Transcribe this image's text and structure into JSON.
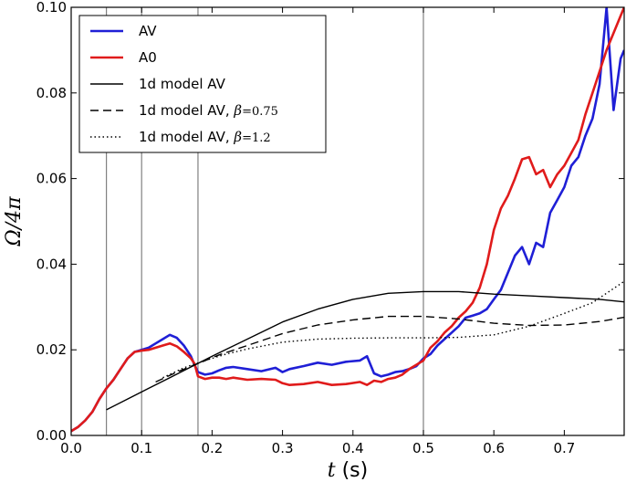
{
  "chart_data": {
    "type": "line",
    "xlabel": "t (s)",
    "xlabel_var": "t",
    "xlabel_unit": "(s)",
    "ylabel": "Ω/4π",
    "xlim": [
      0.0,
      0.785
    ],
    "ylim": [
      0.0,
      0.1
    ],
    "xticks": [
      0.0,
      0.1,
      0.2,
      0.3,
      0.4,
      0.5,
      0.6,
      0.7
    ],
    "xtick_labels": [
      "0.0",
      "0.1",
      "0.2",
      "0.3",
      "0.4",
      "0.5",
      "0.6",
      "0.7"
    ],
    "yticks": [
      0.0,
      0.02,
      0.04,
      0.06,
      0.08,
      0.1
    ],
    "ytick_labels": [
      "0.00",
      "0.02",
      "0.04",
      "0.06",
      "0.08",
      "0.10"
    ],
    "grid": false,
    "legend_position": "top-left",
    "vertical_lines": [
      0.05,
      0.1,
      0.18,
      0.5
    ],
    "series": [
      {
        "name": "AV",
        "color": "#1f1fd6",
        "style": "solid",
        "x": [
          0.0,
          0.01,
          0.02,
          0.03,
          0.04,
          0.05,
          0.06,
          0.07,
          0.08,
          0.09,
          0.1,
          0.11,
          0.12,
          0.13,
          0.14,
          0.15,
          0.16,
          0.17,
          0.175,
          0.18,
          0.19,
          0.2,
          0.21,
          0.22,
          0.23,
          0.25,
          0.27,
          0.29,
          0.3,
          0.31,
          0.33,
          0.35,
          0.37,
          0.39,
          0.41,
          0.42,
          0.43,
          0.44,
          0.45,
          0.46,
          0.47,
          0.48,
          0.49,
          0.5,
          0.51,
          0.52,
          0.53,
          0.54,
          0.55,
          0.56,
          0.57,
          0.58,
          0.59,
          0.6,
          0.61,
          0.62,
          0.63,
          0.64,
          0.65,
          0.66,
          0.67,
          0.68,
          0.69,
          0.7,
          0.71,
          0.72,
          0.73,
          0.74,
          0.75,
          0.76,
          0.77,
          0.78,
          0.785
        ],
        "y": [
          0.001,
          0.002,
          0.0035,
          0.0055,
          0.0085,
          0.011,
          0.013,
          0.0155,
          0.018,
          0.0195,
          0.02,
          0.0205,
          0.0215,
          0.0225,
          0.0235,
          0.0228,
          0.021,
          0.0185,
          0.0165,
          0.0148,
          0.0142,
          0.0145,
          0.0152,
          0.0158,
          0.016,
          0.0155,
          0.015,
          0.0158,
          0.0148,
          0.0155,
          0.0162,
          0.017,
          0.0165,
          0.0172,
          0.0175,
          0.0185,
          0.0145,
          0.0138,
          0.0142,
          0.0148,
          0.015,
          0.0155,
          0.0162,
          0.018,
          0.019,
          0.021,
          0.0225,
          0.024,
          0.0255,
          0.0275,
          0.028,
          0.0285,
          0.0295,
          0.0318,
          0.034,
          0.038,
          0.042,
          0.044,
          0.04,
          0.045,
          0.044,
          0.052,
          0.055,
          0.058,
          0.063,
          0.065,
          0.07,
          0.074,
          0.082,
          0.1,
          0.076,
          0.088,
          0.09
        ]
      },
      {
        "name": "A0",
        "color": "#e01b1b",
        "style": "solid",
        "x": [
          0.0,
          0.01,
          0.02,
          0.03,
          0.04,
          0.05,
          0.06,
          0.07,
          0.08,
          0.09,
          0.1,
          0.11,
          0.12,
          0.13,
          0.14,
          0.15,
          0.16,
          0.17,
          0.175,
          0.18,
          0.19,
          0.2,
          0.21,
          0.22,
          0.23,
          0.25,
          0.27,
          0.29,
          0.3,
          0.31,
          0.33,
          0.35,
          0.37,
          0.39,
          0.41,
          0.42,
          0.43,
          0.44,
          0.45,
          0.46,
          0.47,
          0.48,
          0.49,
          0.5,
          0.51,
          0.52,
          0.53,
          0.54,
          0.55,
          0.56,
          0.57,
          0.58,
          0.59,
          0.6,
          0.61,
          0.62,
          0.63,
          0.64,
          0.65,
          0.66,
          0.67,
          0.68,
          0.69,
          0.7,
          0.71,
          0.72,
          0.73,
          0.74,
          0.75,
          0.76,
          0.77,
          0.78,
          0.785
        ],
        "y": [
          0.001,
          0.002,
          0.0035,
          0.0055,
          0.0085,
          0.011,
          0.013,
          0.0155,
          0.018,
          0.0195,
          0.0198,
          0.02,
          0.0205,
          0.021,
          0.0215,
          0.0208,
          0.0195,
          0.018,
          0.0168,
          0.0138,
          0.0132,
          0.0135,
          0.0135,
          0.0132,
          0.0135,
          0.013,
          0.0132,
          0.013,
          0.0122,
          0.0118,
          0.012,
          0.0125,
          0.0118,
          0.012,
          0.0125,
          0.0118,
          0.0128,
          0.0125,
          0.0132,
          0.0135,
          0.0142,
          0.0155,
          0.0165,
          0.0175,
          0.0205,
          0.022,
          0.024,
          0.0255,
          0.0275,
          0.029,
          0.031,
          0.0345,
          0.04,
          0.048,
          0.053,
          0.056,
          0.06,
          0.0645,
          0.065,
          0.061,
          0.062,
          0.058,
          0.061,
          0.063,
          0.066,
          0.069,
          0.075,
          0.08,
          0.085,
          0.09,
          0.094,
          0.098,
          0.1
        ]
      },
      {
        "name": "1d model AV",
        "color": "#000000",
        "style": "solid",
        "x": [
          0.05,
          0.08,
          0.11,
          0.14,
          0.17,
          0.2,
          0.25,
          0.3,
          0.35,
          0.4,
          0.45,
          0.5,
          0.55,
          0.6,
          0.65,
          0.7,
          0.75,
          0.785
        ],
        "y": [
          0.006,
          0.0085,
          0.011,
          0.0135,
          0.016,
          0.0185,
          0.0225,
          0.0265,
          0.0295,
          0.0318,
          0.0332,
          0.0336,
          0.0336,
          0.033,
          0.0326,
          0.0322,
          0.0318,
          0.0312
        ]
      },
      {
        "name": "1d model AV, β=0.75",
        "color": "#000000",
        "style": "dashed",
        "x": [
          0.12,
          0.15,
          0.18,
          0.21,
          0.25,
          0.3,
          0.35,
          0.4,
          0.45,
          0.5,
          0.55,
          0.6,
          0.65,
          0.7,
          0.75,
          0.785
        ],
        "y": [
          0.0125,
          0.0148,
          0.0168,
          0.0188,
          0.021,
          0.0238,
          0.0258,
          0.027,
          0.0278,
          0.0278,
          0.0272,
          0.0262,
          0.0257,
          0.0258,
          0.0266,
          0.0276
        ]
      },
      {
        "name": "1d model AV, β=1.2",
        "color": "#000000",
        "style": "dotted",
        "x": [
          0.13,
          0.16,
          0.19,
          0.22,
          0.25,
          0.3,
          0.35,
          0.4,
          0.45,
          0.5,
          0.55,
          0.6,
          0.65,
          0.7,
          0.74,
          0.785
        ],
        "y": [
          0.0135,
          0.0158,
          0.0175,
          0.019,
          0.0202,
          0.0218,
          0.0225,
          0.0227,
          0.0228,
          0.0228,
          0.0229,
          0.0235,
          0.0255,
          0.0285,
          0.031,
          0.036
        ]
      }
    ],
    "legend": [
      {
        "label": "AV",
        "color": "#1f1fd6",
        "style": "solid"
      },
      {
        "label": "A0",
        "color": "#e01b1b",
        "style": "solid"
      },
      {
        "label": "1d model AV",
        "color": "#000000",
        "style": "solid"
      },
      {
        "label_text": "1d model AV, ",
        "label_beta": "β",
        "label_value": "=0.75",
        "color": "#000000",
        "style": "dashed"
      },
      {
        "label_text": "1d model AV, ",
        "label_beta": "β",
        "label_value": "=1.2",
        "color": "#000000",
        "style": "dotted"
      }
    ]
  }
}
